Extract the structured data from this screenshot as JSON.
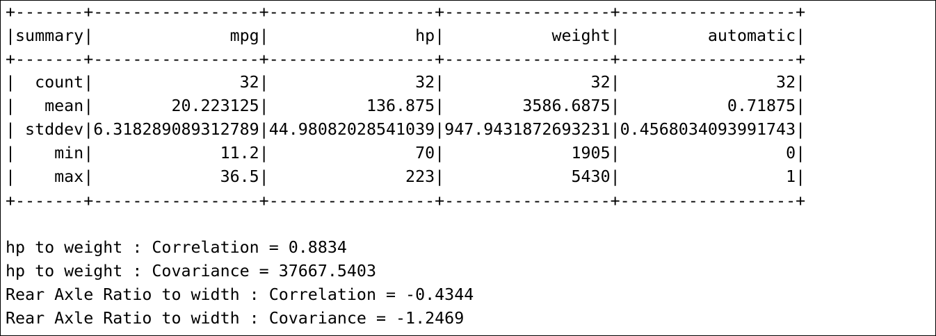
{
  "table_lines": [
    "+-------+-----------------+-----------------+-----------------+------------------+",
    "|summary|              mpg|               hp|           weight|         automatic|",
    "+-------+-----------------+-----------------+-----------------+------------------+",
    "|  count|               32|               32|               32|                32|",
    "|   mean|        20.223125|          136.875|        3586.6875|           0.71875|",
    "| stddev|6.318289089312789|44.98082028541039|947.9431872693231|0.4568034093991743|",
    "|    min|             11.2|               70|             1905|                 0|",
    "|    max|             36.5|              223|             5430|                 1|",
    "+-------+-----------------+-----------------+-----------------+------------------+"
  ],
  "result_lines": [
    "hp to weight : Correlation = 0.8834",
    "hp to weight : Covariance = 37667.5403",
    "Rear Axle Ratio to width : Correlation = -0.4344",
    "Rear Axle Ratio to width : Covariance = -1.2469"
  ]
}
